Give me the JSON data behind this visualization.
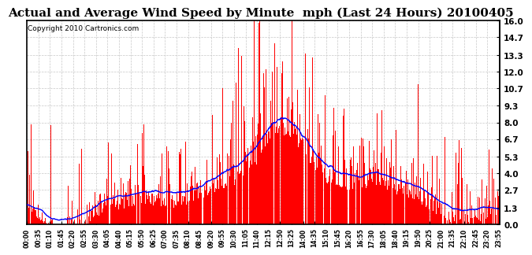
{
  "title": "Actual and Average Wind Speed by Minute  mph (Last 24 Hours) 20100405",
  "copyright_text": "Copyright 2010 Cartronics.com",
  "yticks": [
    0.0,
    1.3,
    2.7,
    4.0,
    5.3,
    6.7,
    8.0,
    9.3,
    10.7,
    12.0,
    13.3,
    14.7,
    16.0
  ],
  "ymax": 16.0,
  "ymin": 0.0,
  "bar_color": "#FF0000",
  "line_color": "#0000FF",
  "background_color": "#FFFFFF",
  "grid_color": "#C8C8C8",
  "title_fontsize": 11,
  "copyright_fontsize": 6.5,
  "num_minutes": 1440,
  "tick_interval": 35,
  "xtick_labels": [
    "00:00",
    "00:35",
    "01:10",
    "01:45",
    "02:20",
    "02:55",
    "03:30",
    "04:05",
    "04:40",
    "05:15",
    "05:50",
    "06:25",
    "07:00",
    "07:35",
    "08:10",
    "08:45",
    "09:20",
    "09:55",
    "10:30",
    "11:05",
    "11:40",
    "12:15",
    "12:50",
    "13:25",
    "14:00",
    "14:35",
    "15:10",
    "15:45",
    "16:20",
    "16:55",
    "17:30",
    "18:05",
    "18:40",
    "19:15",
    "19:50",
    "20:25",
    "21:00",
    "21:35",
    "22:10",
    "22:45",
    "23:20",
    "23:55"
  ]
}
